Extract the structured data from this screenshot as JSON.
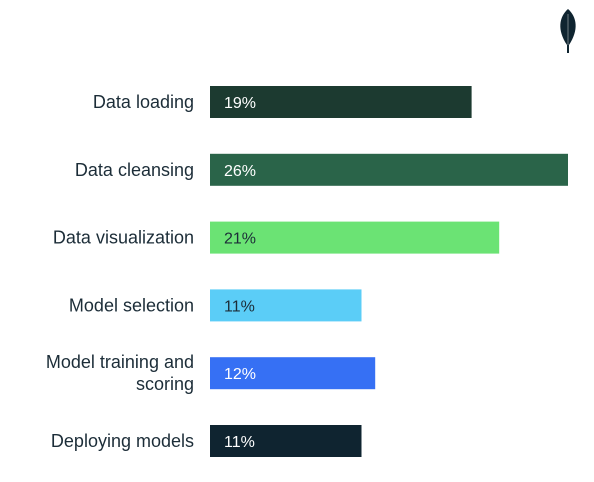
{
  "chart_data": {
    "type": "bar",
    "orientation": "horizontal",
    "title": "",
    "xlabel": "",
    "ylabel": "",
    "xlim": [
      0,
      26
    ],
    "grid": false,
    "legend": "none",
    "categories": [
      "Data loading",
      "Data cleansing",
      "Data visualization",
      "Model selection",
      "Model training and scoring",
      "Deploying models"
    ],
    "category_lines": [
      [
        "Data loading"
      ],
      [
        "Data cleansing"
      ],
      [
        "Data visualization"
      ],
      [
        "Model selection"
      ],
      [
        "Model training and",
        "scoring"
      ],
      [
        "Deploying models"
      ]
    ],
    "values": [
      19,
      26,
      21,
      11,
      12,
      11
    ],
    "value_labels": [
      "19%",
      "26%",
      "21%",
      "11%",
      "12%",
      "11%"
    ],
    "bar_colors": [
      "#1c3a30",
      "#2a6449",
      "#6be374",
      "#5bcdf7",
      "#3670f4",
      "#0f2430"
    ],
    "label_colors": [
      "#ffffff",
      "#ffffff",
      "#1c2d38",
      "#1c2d38",
      "#ffffff",
      "#ffffff"
    ]
  },
  "logo": {
    "icon": "leaf-icon",
    "color": "#0f2430"
  }
}
